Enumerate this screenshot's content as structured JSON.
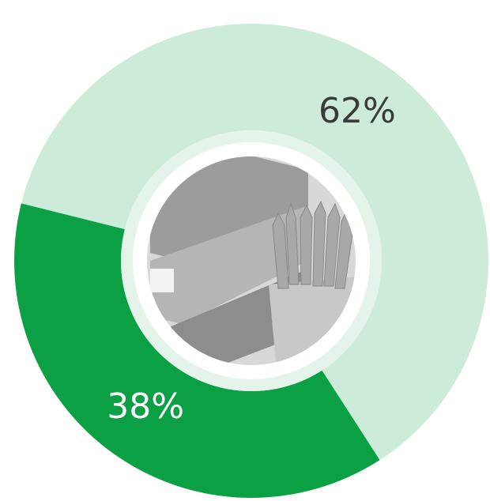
{
  "chart_data": {
    "type": "donut",
    "values": [
      62,
      38
    ],
    "value_labels": [
      "62%",
      "38%"
    ],
    "colors": [
      "#cdebd9",
      "#0aa043"
    ],
    "label_colors": [
      "#3a3a3a",
      "#ffffff"
    ]
  }
}
